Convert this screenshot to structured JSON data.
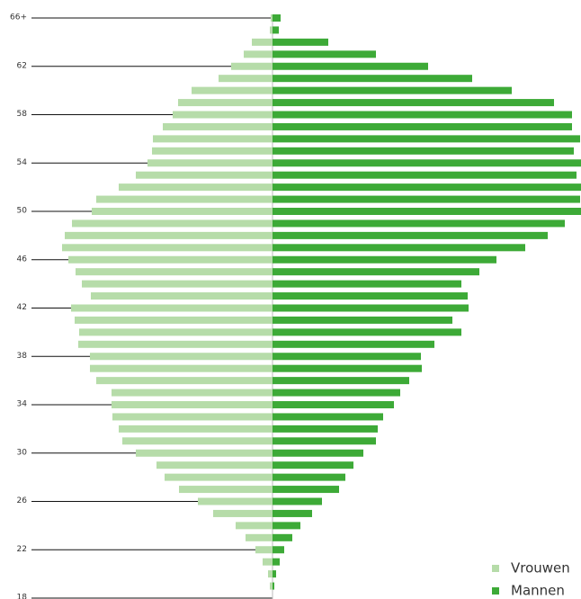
{
  "chart_data": {
    "type": "population-pyramid",
    "categories": [
      "18",
      null,
      null,
      null,
      "22",
      null,
      null,
      null,
      "26",
      null,
      null,
      null,
      "30",
      null,
      null,
      null,
      "34",
      null,
      null,
      null,
      "38",
      null,
      null,
      null,
      "42",
      null,
      null,
      null,
      "46",
      null,
      null,
      null,
      "50",
      null,
      null,
      null,
      "54",
      null,
      null,
      null,
      "58",
      null,
      null,
      null,
      "62",
      null,
      null,
      null,
      "66+"
    ],
    "series": [
      {
        "name": "Vrouwen",
        "color": "#b6dca9",
        "side": "left",
        "values": [
          0,
          3,
          5,
          11,
          19,
          30,
          41,
          66,
          83,
          104,
          120,
          129,
          152,
          167,
          171,
          178,
          179,
          179,
          196,
          203,
          203,
          216,
          215,
          220,
          224,
          202,
          212,
          219,
          227,
          234,
          231,
          223,
          201,
          196,
          171,
          152,
          139,
          134,
          133,
          122,
          111,
          105,
          90,
          60,
          46,
          32,
          23,
          3,
          2
        ]
      },
      {
        "name": "Mannen",
        "color": "#3daa37",
        "side": "right",
        "values": [
          0,
          2,
          4,
          8,
          13,
          22,
          31,
          44,
          55,
          74,
          81,
          90,
          101,
          115,
          117,
          123,
          135,
          142,
          152,
          166,
          165,
          180,
          210,
          200,
          218,
          217,
          210,
          230,
          249,
          281,
          306,
          325,
          343,
          342,
          343,
          338,
          343,
          335,
          342,
          333,
          333,
          313,
          266,
          222,
          173,
          115,
          62,
          7,
          9
        ]
      }
    ],
    "legend": "bottom-right"
  }
}
